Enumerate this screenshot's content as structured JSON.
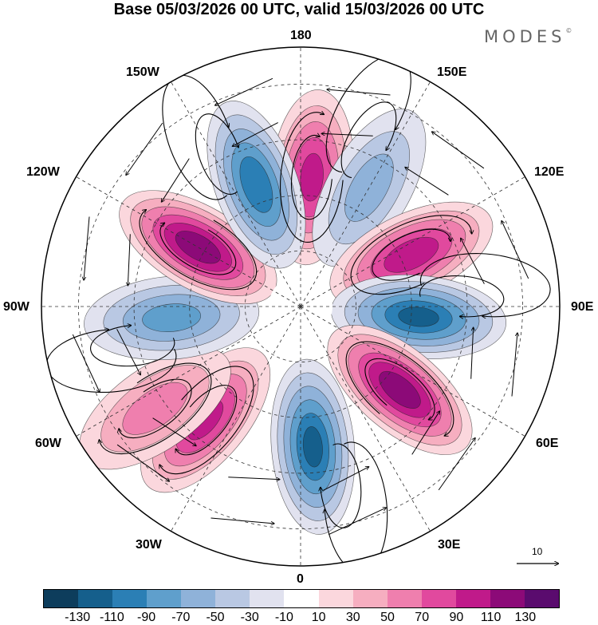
{
  "title": "Base 05/03/2026 00 UTC, valid 15/03/2026 00 UTC",
  "brand": "MODES",
  "brand_mark": "©",
  "longitudes": {
    "top": "180",
    "top_left": "150W",
    "top_right": "150E",
    "upper_left": "120W",
    "upper_right": "120E",
    "left": "90W",
    "right": "90E",
    "lower_left": "60W",
    "lower_right": "60E",
    "bottom_left": "30W",
    "bottom_right": "30E",
    "bottom": "0"
  },
  "reference_vector": {
    "label": "10"
  },
  "colorbar": {
    "colors": [
      "#0d3d5c",
      "#155f8c",
      "#2b7fb5",
      "#5f9fcc",
      "#8fb2d9",
      "#b9c8e3",
      "#e1e2ef",
      "#ffffff",
      "#fbd7dd",
      "#f6aec0",
      "#ef7fae",
      "#e1499e",
      "#c01a8a",
      "#8c0a78",
      "#5a0b6e"
    ],
    "labels": [
      "-130",
      "-110",
      "-90",
      "-70",
      "-50",
      "-30",
      "-10",
      "10",
      "30",
      "50",
      "70",
      "90",
      "110",
      "130"
    ]
  },
  "chart_data": {
    "type": "polar-stereographic-anomaly-map",
    "projection": "North polar stereographic",
    "field_units_range": [
      -140,
      140
    ],
    "anomalies": [
      {
        "center_lon": 175,
        "center_lat": 55,
        "value": 90
      },
      {
        "center_lon": 150,
        "center_lat": 53,
        "value": -50
      },
      {
        "center_lon": 115,
        "center_lat": 57,
        "value": 100
      },
      {
        "center_lon": 85,
        "center_lat": 58,
        "value": -110
      },
      {
        "center_lon": 50,
        "center_lat": 55,
        "value": 120
      },
      {
        "center_lon": 5,
        "center_lat": 52,
        "value": -110
      },
      {
        "center_lon": -40,
        "center_lat": 50,
        "value": 90
      },
      {
        "center_lon": -55,
        "center_lat": 42,
        "value": 50
      },
      {
        "center_lon": -85,
        "center_lat": 55,
        "value": -70
      },
      {
        "center_lon": -120,
        "center_lat": 58,
        "value": 120
      },
      {
        "center_lon": -160,
        "center_lat": 55,
        "value": -100
      }
    ]
  }
}
